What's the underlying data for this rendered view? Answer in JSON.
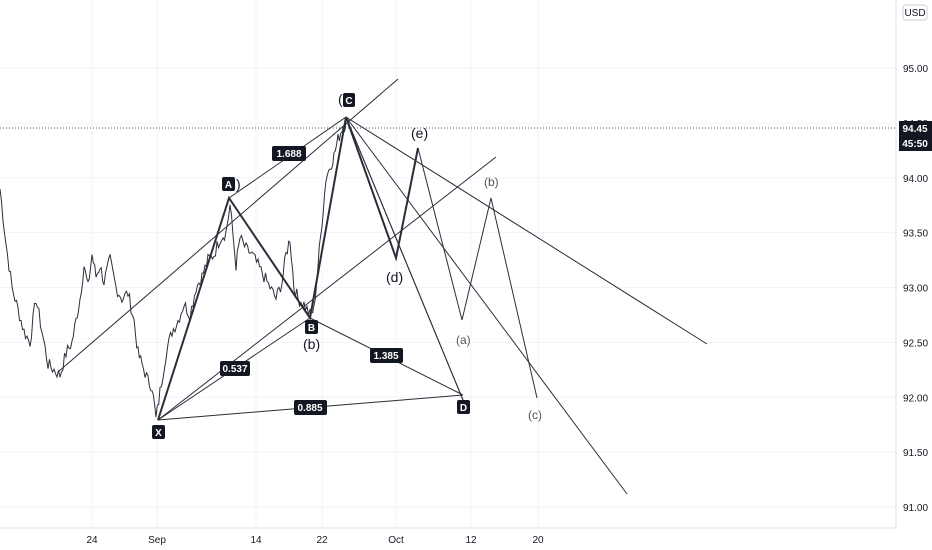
{
  "currency": "USD",
  "price_tag": {
    "price": "94.45",
    "countdown": "45:50"
  },
  "chart_data": {
    "type": "line",
    "x_ticks": [
      "24",
      "Sep",
      "14",
      "22",
      "Oct",
      "12",
      "20"
    ],
    "y_ticks": [
      "95.00",
      "94.50",
      "94.00",
      "93.50",
      "93.00",
      "92.50",
      "92.00",
      "91.50",
      "91.00"
    ],
    "ylim": [
      90.85,
      95.55
    ],
    "last_price": 94.45,
    "price_series": [
      [
        0,
        93.9
      ],
      [
        6,
        93.4
      ],
      [
        12,
        93.0
      ],
      [
        18,
        92.8
      ],
      [
        24,
        92.6
      ],
      [
        30,
        92.5
      ],
      [
        36,
        92.9
      ],
      [
        42,
        92.6
      ],
      [
        48,
        92.3
      ],
      [
        54,
        92.25
      ],
      [
        60,
        92.2
      ],
      [
        66,
        92.4
      ],
      [
        72,
        92.5
      ],
      [
        76,
        92.7
      ],
      [
        80,
        92.9
      ],
      [
        84,
        93.2
      ],
      [
        88,
        93.0
      ],
      [
        92,
        93.3
      ],
      [
        96,
        93.1
      ],
      [
        100,
        93.2
      ],
      [
        104,
        93.05
      ],
      [
        110,
        93.25
      ],
      [
        116,
        93.0
      ],
      [
        122,
        92.9
      ],
      [
        128,
        92.95
      ],
      [
        134,
        92.7
      ],
      [
        138,
        92.4
      ],
      [
        142,
        92.3
      ],
      [
        148,
        92.15
      ],
      [
        152,
        92.1
      ],
      [
        156,
        91.8
      ],
      [
        160,
        92.05
      ],
      [
        166,
        92.4
      ],
      [
        172,
        92.6
      ],
      [
        178,
        92.7
      ],
      [
        184,
        92.85
      ],
      [
        190,
        92.75
      ],
      [
        196,
        93.0
      ],
      [
        202,
        93.1
      ],
      [
        208,
        93.25
      ],
      [
        214,
        93.3
      ],
      [
        220,
        93.45
      ],
      [
        226,
        93.5
      ],
      [
        230,
        93.75
      ],
      [
        236,
        93.2
      ],
      [
        240,
        93.45
      ],
      [
        246,
        93.35
      ],
      [
        252,
        93.3
      ],
      [
        258,
        93.2
      ],
      [
        264,
        93.1
      ],
      [
        270,
        93.0
      ],
      [
        276,
        92.9
      ],
      [
        282,
        93.05
      ],
      [
        286,
        93.3
      ],
      [
        290,
        93.45
      ],
      [
        294,
        93.0
      ],
      [
        298,
        92.9
      ],
      [
        304,
        92.85
      ],
      [
        310,
        92.75
      ],
      [
        314,
        92.8
      ],
      [
        318,
        93.2
      ],
      [
        322,
        93.6
      ],
      [
        326,
        94.0
      ],
      [
        330,
        94.1
      ],
      [
        334,
        94.2
      ],
      [
        338,
        94.35
      ],
      [
        342,
        94.45
      ],
      [
        346,
        94.5
      ]
    ],
    "points": [
      {
        "name": "X",
        "value": 91.8
      },
      {
        "name": "A",
        "value": 93.8
      },
      {
        "name": "B",
        "value": 92.7
      },
      {
        "name": "C",
        "value": 94.55
      },
      {
        "name": "D",
        "value": 92.0
      }
    ],
    "ratios": [
      "1.688",
      "0.537",
      "1.385",
      "0.885"
    ],
    "wave_labels": [
      "(",
      ")",
      "(b)",
      "(e)",
      "(d)",
      "(b)",
      "(a)",
      "(c)"
    ]
  }
}
